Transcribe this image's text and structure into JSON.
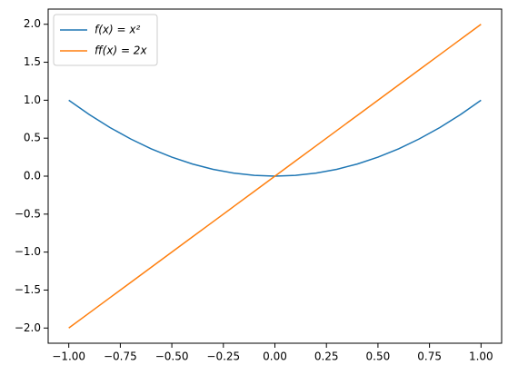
{
  "chart_data": {
    "type": "line",
    "x": [
      -1,
      -0.9,
      -0.8,
      -0.7,
      -0.6,
      -0.5,
      -0.4,
      -0.3,
      -0.2,
      -0.1,
      0,
      0.1,
      0.2,
      0.3,
      0.4,
      0.5,
      0.6,
      0.7,
      0.8,
      0.9,
      1
    ],
    "series": [
      {
        "name": "f(x) = x²",
        "color": "#1f77b4",
        "values": [
          1,
          0.81,
          0.64,
          0.49,
          0.36,
          0.25,
          0.16,
          0.09,
          0.04,
          0.01,
          0,
          0.01,
          0.04,
          0.09,
          0.16,
          0.25,
          0.36,
          0.49,
          0.64,
          0.81,
          1
        ]
      },
      {
        "name": "ff(x) = 2x",
        "color": "#ff7f0e",
        "values": [
          -2,
          -1.8,
          -1.6,
          -1.4,
          -1.2,
          -1,
          -0.8,
          -0.6,
          -0.4,
          -0.2,
          0,
          0.2,
          0.4,
          0.6,
          0.8,
          1,
          1.2,
          1.4,
          1.6,
          1.8,
          2
        ]
      }
    ],
    "xlim": [
      -1.1,
      1.1
    ],
    "ylim": [
      -2.2,
      2.2
    ],
    "xticks": [
      {
        "value": -1,
        "label": "−1.00"
      },
      {
        "value": -0.75,
        "label": "−0.75"
      },
      {
        "value": -0.5,
        "label": "−0.50"
      },
      {
        "value": -0.25,
        "label": "−0.25"
      },
      {
        "value": 0,
        "label": "0.00"
      },
      {
        "value": 0.25,
        "label": "0.25"
      },
      {
        "value": 0.5,
        "label": "0.50"
      },
      {
        "value": 0.75,
        "label": "0.75"
      },
      {
        "value": 1,
        "label": "1.00"
      }
    ],
    "yticks": [
      {
        "value": -2,
        "label": "−2.0"
      },
      {
        "value": -1.5,
        "label": "−1.5"
      },
      {
        "value": -1,
        "label": "−1.0"
      },
      {
        "value": -0.5,
        "label": "−0.5"
      },
      {
        "value": 0,
        "label": "0.0"
      },
      {
        "value": 0.5,
        "label": "0.5"
      },
      {
        "value": 1,
        "label": "1.0"
      },
      {
        "value": 1.5,
        "label": "1.5"
      },
      {
        "value": 2,
        "label": "2.0"
      }
    ],
    "grid": false,
    "legend": "upper left"
  }
}
